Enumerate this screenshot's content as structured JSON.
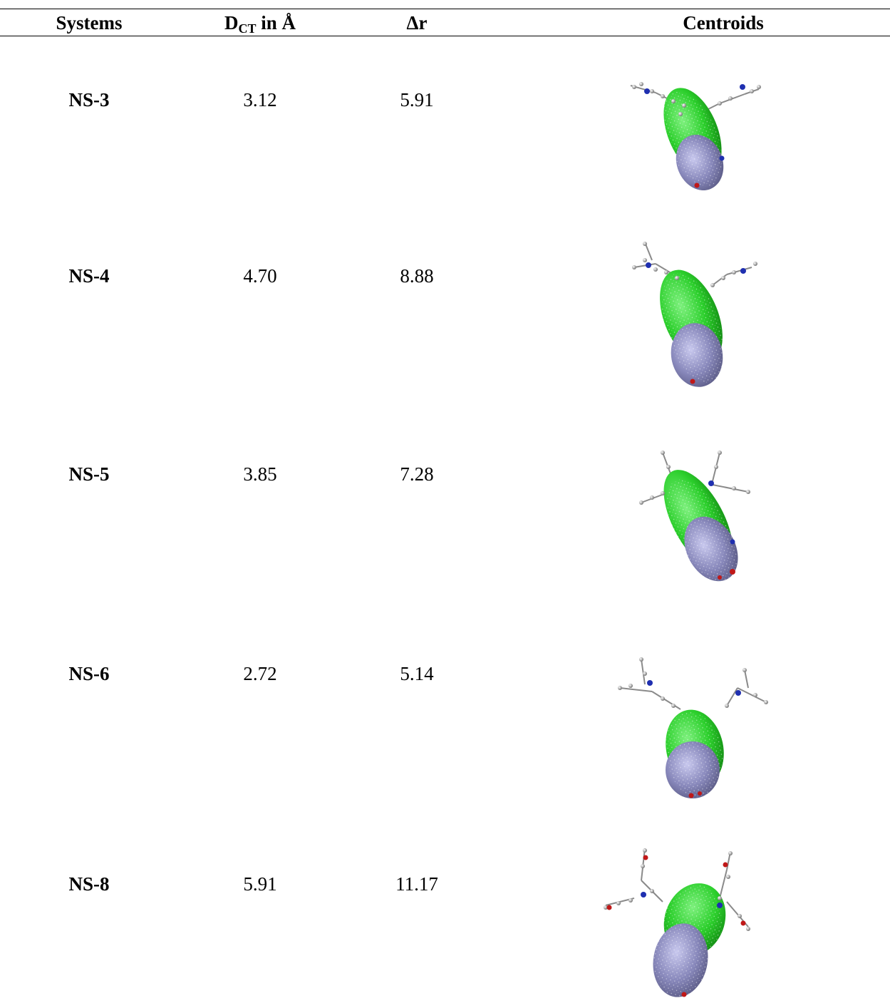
{
  "table": {
    "headers": {
      "systems": "Systems",
      "dct_main": "D",
      "dct_sub": "CT",
      "dct_tail": " in Å",
      "dr": "Δr",
      "centroids": "Centroids"
    },
    "rows": [
      {
        "system": "NS-3",
        "dct": "3.12",
        "dr": "5.91"
      },
      {
        "system": "NS-4",
        "dct": "4.70",
        "dr": "8.88"
      },
      {
        "system": "NS-5",
        "dct": "3.85",
        "dr": "7.28"
      },
      {
        "system": "NS-6",
        "dct": "2.72",
        "dr": "5.14"
      },
      {
        "system": "NS-8",
        "dct": "5.91",
        "dr": "11.17"
      }
    ]
  },
  "colors": {
    "hole_centroid": "#2ccf2c",
    "electron_centroid": "#8888bb",
    "carbon": "#9a9a9a",
    "nitrogen": "#1f2fb0",
    "oxygen": "#c01818",
    "hydrogen": "#dddddd"
  }
}
